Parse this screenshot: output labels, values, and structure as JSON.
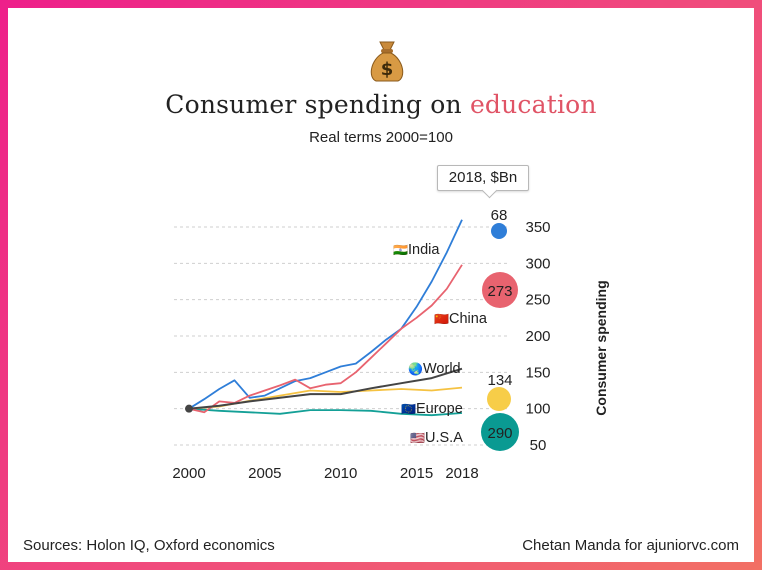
{
  "header": {
    "title_main": "Consumer spending on ",
    "title_accent": "education",
    "subtitle": "Real terms 2000=100"
  },
  "tooltip": {
    "label": "2018, $Bn"
  },
  "footer": {
    "sources": "Sources: Holon IQ, Oxford economics",
    "credit": "Chetan Manda for ajuniorvc.com"
  },
  "chart_data": {
    "type": "line",
    "title": "Consumer spending on education",
    "subtitle": "Real terms 2000=100",
    "xlabel": "",
    "ylabel": "Consumer spending",
    "xlim": [
      1999,
      2020
    ],
    "ylim": [
      45,
      365
    ],
    "x_ticks": [
      2000,
      2005,
      2010,
      2015,
      2018
    ],
    "y_ticks": [
      50,
      100,
      150,
      200,
      250,
      300,
      350
    ],
    "grid": true,
    "series": [
      {
        "name": "India",
        "flag": "🇮🇳",
        "color": "#2f7ed8",
        "x": [
          2000,
          2001,
          2002,
          2003,
          2004,
          2005,
          2006,
          2007,
          2008,
          2009,
          2010,
          2011,
          2012,
          2013,
          2014,
          2015,
          2016,
          2017,
          2018
        ],
        "values": [
          100,
          113,
          127,
          139,
          115,
          118,
          128,
          138,
          142,
          150,
          158,
          162,
          178,
          195,
          210,
          240,
          275,
          315,
          360
        ],
        "bubble_label": "68",
        "bubble_color": "#2f7ed8"
      },
      {
        "name": "China",
        "flag": "🇨🇳",
        "color": "#e8636f",
        "x": [
          2000,
          2001,
          2002,
          2003,
          2004,
          2005,
          2006,
          2007,
          2008,
          2009,
          2010,
          2011,
          2012,
          2013,
          2014,
          2015,
          2016,
          2017,
          2018
        ],
        "values": [
          100,
          95,
          110,
          108,
          118,
          125,
          132,
          140,
          128,
          133,
          135,
          150,
          170,
          190,
          210,
          225,
          242,
          265,
          298
        ],
        "bubble_label": "273",
        "bubble_color": "#e8636f"
      },
      {
        "name": "World",
        "flag": "🌏",
        "color": "#444444",
        "x": [
          2000,
          2002,
          2004,
          2006,
          2008,
          2010,
          2012,
          2014,
          2016,
          2018
        ],
        "values": [
          100,
          104,
          110,
          115,
          120,
          120,
          128,
          135,
          142,
          155
        ],
        "bubble_label": "134",
        "bubble_color": "#ffffff"
      },
      {
        "name": "Europe",
        "flag": "🇪🇺",
        "color": "#f5c242",
        "x": [
          2000,
          2002,
          2004,
          2006,
          2008,
          2010,
          2012,
          2014,
          2016,
          2018
        ],
        "values": [
          100,
          103,
          111,
          118,
          125,
          123,
          125,
          127,
          125,
          129
        ],
        "bubble_label": "",
        "bubble_color": "#f7cd48"
      },
      {
        "name": "U.S.A",
        "flag": "🇺🇸",
        "color": "#14a097",
        "x": [
          2000,
          2002,
          2004,
          2006,
          2008,
          2010,
          2012,
          2014,
          2016,
          2018
        ],
        "values": [
          100,
          97,
          95,
          93,
          98,
          98,
          97,
          93,
          91,
          94
        ],
        "bubble_label": "290",
        "bubble_color": "#0a9a92"
      }
    ]
  }
}
